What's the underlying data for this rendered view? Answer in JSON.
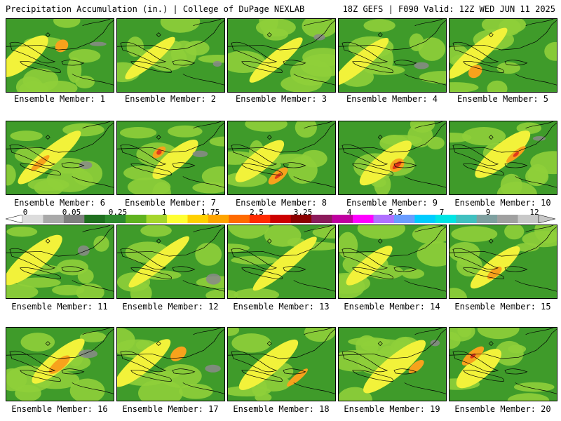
{
  "header": {
    "left": "Precipitation Accumulation (in.) | College of DuPage NEXLAB",
    "right": "18Z GEFS | F090 Valid: 12Z WED JUN 11 2025"
  },
  "caption_prefix": "Ensemble Member: ",
  "members": [
    1,
    2,
    3,
    4,
    5,
    6,
    7,
    8,
    9,
    10,
    11,
    12,
    13,
    14,
    15,
    16,
    17,
    18,
    19,
    20
  ],
  "colorbar": {
    "tick_labels": [
      "0",
      "0.05",
      "0.25",
      "1",
      "1.75",
      "2.5",
      "3.25",
      "4",
      "5.5",
      "7",
      "9",
      "12"
    ],
    "colors": [
      "#dcdcdc",
      "#a9a9a9",
      "#7f7f7f",
      "#1f6f1f",
      "#2e8b2e",
      "#5fb21f",
      "#a6d62c",
      "#ffff33",
      "#ffd000",
      "#ffa500",
      "#ff6a00",
      "#ff2a00",
      "#cc0000",
      "#8b0000",
      "#8b1a5a",
      "#c000a0",
      "#ff00ff",
      "#b070ff",
      "#6a9cff",
      "#00ccff",
      "#00e5e5",
      "#40c0c0",
      "#7fa0a0",
      "#a0a0a0",
      "#c8c8c8"
    ]
  },
  "colors": {
    "background": "#ffffff",
    "map_base_green": "#3f9b2a",
    "map_light_green": "#8fcf3a",
    "yellow": "#f2f23a",
    "orange": "#f7a21c",
    "red": "#e23a1a",
    "gray": "#8a8a8a"
  }
}
